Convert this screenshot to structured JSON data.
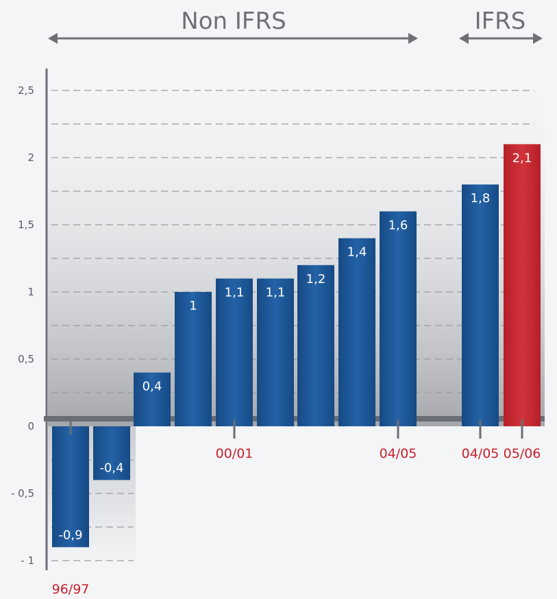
{
  "chart_data": {
    "type": "bar",
    "title": "",
    "xlabel": "",
    "ylabel": "",
    "ylim": [
      -1,
      2.6
    ],
    "y_ticks": [
      {
        "value": 2.5,
        "label": "2,5"
      },
      {
        "value": 2,
        "label": "2"
      },
      {
        "value": 1.5,
        "label": "1,5"
      },
      {
        "value": 1,
        "label": "1"
      },
      {
        "value": 0.5,
        "label": "0,5"
      },
      {
        "value": 0,
        "label": "0"
      },
      {
        "value": -0.5,
        "label": "- 0,5"
      },
      {
        "value": -1,
        "label": "- 1"
      }
    ],
    "grid": true,
    "colors": {
      "default": "#1e5b9c",
      "highlight": "#c62a32",
      "category_labels": "#c8202a"
    },
    "bars": [
      {
        "value": -0.9,
        "label": "-0,9",
        "category": "96/97",
        "highlight": false
      },
      {
        "value": -0.4,
        "label": "-0,4",
        "category": "",
        "highlight": false
      },
      {
        "value": 0.4,
        "label": "0,4",
        "category": "",
        "highlight": false
      },
      {
        "value": 1.0,
        "label": "1",
        "category": "",
        "highlight": false
      },
      {
        "value": 1.1,
        "label": "1,1",
        "category": "00/01",
        "highlight": false
      },
      {
        "value": 1.1,
        "label": "1,1",
        "category": "",
        "highlight": false
      },
      {
        "value": 1.2,
        "label": "1,2",
        "category": "",
        "highlight": false
      },
      {
        "value": 1.4,
        "label": "1,4",
        "category": "",
        "highlight": false
      },
      {
        "value": 1.6,
        "label": "1,6",
        "category": "04/05",
        "highlight": false
      },
      {
        "value": 1.8,
        "label": "1,8",
        "category": "04/05",
        "highlight": false
      },
      {
        "value": 2.1,
        "label": "2,1",
        "category": "05/06",
        "highlight": true
      }
    ],
    "groups": [
      {
        "label": "Non IFRS",
        "from": 0,
        "to": 8
      },
      {
        "label": "IFRS",
        "from": 9,
        "to": 10
      }
    ]
  }
}
